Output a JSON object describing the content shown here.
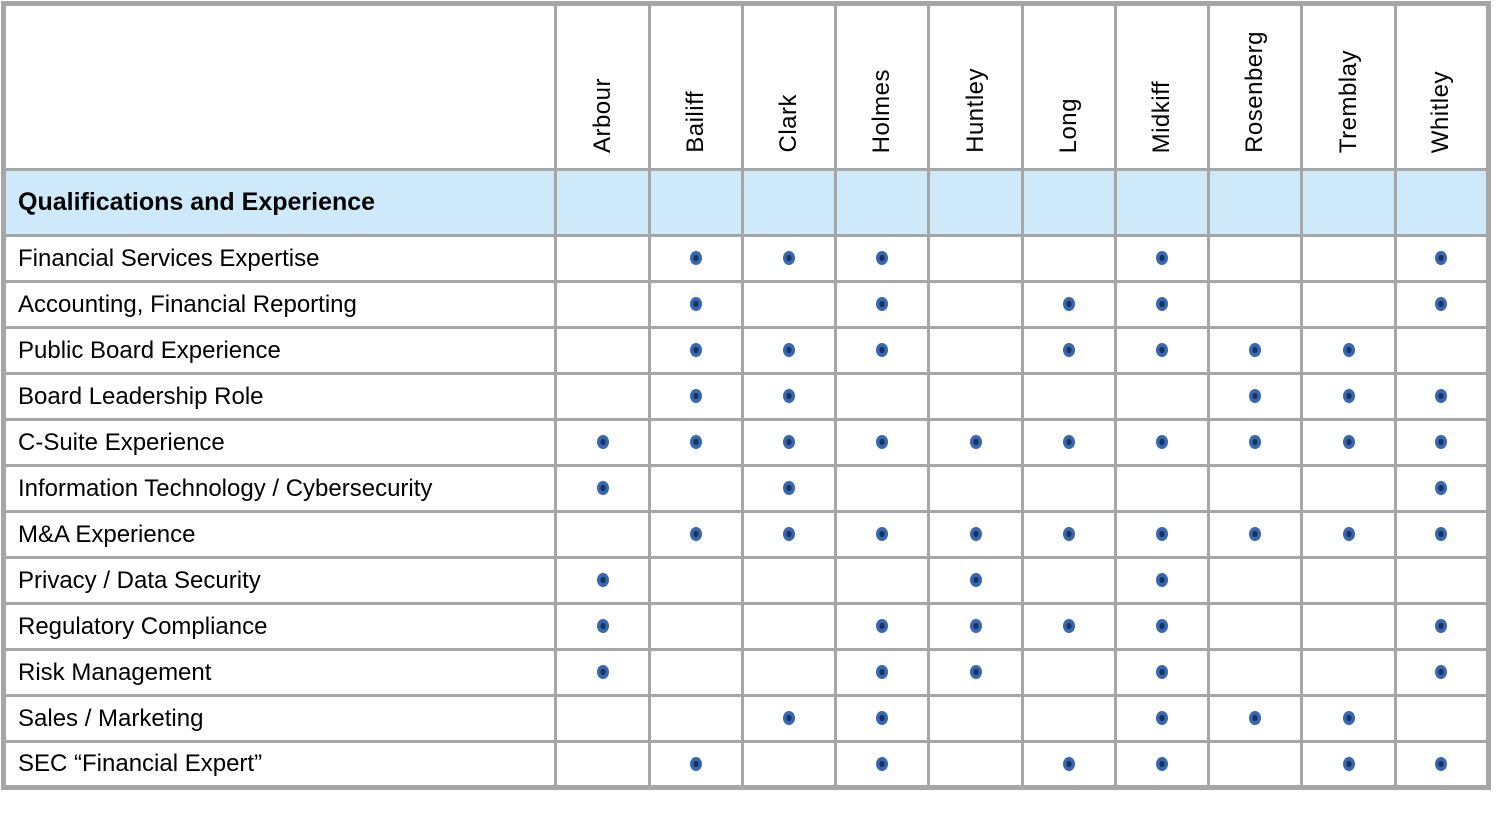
{
  "table": {
    "section_header": "Qualifications and Experience",
    "columns": [
      "Arbour",
      "Bailiff",
      "Clark",
      "Holmes",
      "Huntley",
      "Long",
      "Midkiff",
      "Rosenberg",
      "Tremblay",
      "Whitley"
    ],
    "rows": [
      {
        "label": "Financial Services Expertise",
        "marks": [
          0,
          1,
          1,
          1,
          0,
          0,
          1,
          0,
          0,
          1
        ]
      },
      {
        "label": "Accounting, Financial Reporting",
        "marks": [
          0,
          1,
          0,
          1,
          0,
          1,
          1,
          0,
          0,
          1
        ]
      },
      {
        "label": "Public Board Experience",
        "marks": [
          0,
          1,
          1,
          1,
          0,
          1,
          1,
          1,
          1,
          0
        ]
      },
      {
        "label": "Board Leadership Role",
        "marks": [
          0,
          1,
          1,
          0,
          0,
          0,
          0,
          1,
          1,
          1
        ]
      },
      {
        "label": "C-Suite Experience",
        "marks": [
          1,
          1,
          1,
          1,
          1,
          1,
          1,
          1,
          1,
          1
        ]
      },
      {
        "label": "Information Technology / Cybersecurity",
        "marks": [
          1,
          0,
          1,
          0,
          0,
          0,
          0,
          0,
          0,
          1
        ]
      },
      {
        "label": "M&A Experience",
        "marks": [
          0,
          1,
          1,
          1,
          1,
          1,
          1,
          1,
          1,
          1
        ]
      },
      {
        "label": "Privacy / Data Security",
        "marks": [
          1,
          0,
          0,
          0,
          1,
          0,
          1,
          0,
          0,
          0
        ]
      },
      {
        "label": "Regulatory Compliance",
        "marks": [
          1,
          0,
          0,
          1,
          1,
          1,
          1,
          0,
          0,
          1
        ]
      },
      {
        "label": "Risk Management",
        "marks": [
          1,
          0,
          0,
          1,
          1,
          0,
          1,
          0,
          0,
          1
        ]
      },
      {
        "label": "Sales / Marketing",
        "marks": [
          0,
          0,
          1,
          1,
          0,
          0,
          1,
          1,
          1,
          0
        ]
      },
      {
        "label": "SEC “Financial Expert”",
        "marks": [
          0,
          1,
          0,
          1,
          0,
          1,
          1,
          0,
          1,
          1
        ]
      }
    ],
    "mark_symbol": "filled-circle-dot"
  },
  "colors": {
    "grid": "#a6a6a6",
    "section_background": "#cde9fa",
    "dot_outer": "#3866af",
    "dot_center": "#16345f",
    "cell_background": "#ffffff",
    "text": "#000000"
  },
  "chart_data": {
    "type": "table",
    "title": "Qualifications and Experience",
    "columns": [
      "Arbour",
      "Bailiff",
      "Clark",
      "Holmes",
      "Huntley",
      "Long",
      "Midkiff",
      "Rosenberg",
      "Tremblay",
      "Whitley"
    ],
    "rows": [
      {
        "label": "Financial Services Expertise",
        "values": [
          0,
          1,
          1,
          1,
          0,
          0,
          1,
          0,
          0,
          1
        ]
      },
      {
        "label": "Accounting, Financial Reporting",
        "values": [
          0,
          1,
          0,
          1,
          0,
          1,
          1,
          0,
          0,
          1
        ]
      },
      {
        "label": "Public Board Experience",
        "values": [
          0,
          1,
          1,
          1,
          0,
          1,
          1,
          1,
          1,
          0
        ]
      },
      {
        "label": "Board Leadership Role",
        "values": [
          0,
          1,
          1,
          0,
          0,
          0,
          0,
          1,
          1,
          1
        ]
      },
      {
        "label": "C-Suite Experience",
        "values": [
          1,
          1,
          1,
          1,
          1,
          1,
          1,
          1,
          1,
          1
        ]
      },
      {
        "label": "Information Technology / Cybersecurity",
        "values": [
          1,
          0,
          1,
          0,
          0,
          0,
          0,
          0,
          0,
          1
        ]
      },
      {
        "label": "M&A Experience",
        "values": [
          0,
          1,
          1,
          1,
          1,
          1,
          1,
          1,
          1,
          1
        ]
      },
      {
        "label": "Privacy / Data Security",
        "values": [
          1,
          0,
          0,
          0,
          1,
          0,
          1,
          0,
          0,
          0
        ]
      },
      {
        "label": "Regulatory Compliance",
        "values": [
          1,
          0,
          0,
          1,
          1,
          1,
          1,
          0,
          0,
          1
        ]
      },
      {
        "label": "Risk Management",
        "values": [
          1,
          0,
          0,
          1,
          1,
          0,
          1,
          0,
          0,
          1
        ]
      },
      {
        "label": "Sales / Marketing",
        "values": [
          0,
          0,
          1,
          1,
          0,
          0,
          1,
          1,
          1,
          0
        ]
      },
      {
        "label": "SEC “Financial Expert”",
        "values": [
          0,
          1,
          0,
          1,
          0,
          1,
          1,
          0,
          1,
          1
        ]
      }
    ]
  }
}
